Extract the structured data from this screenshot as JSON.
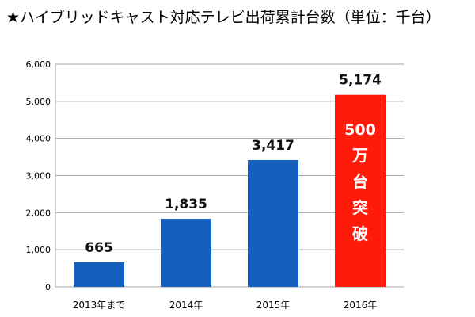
{
  "title": "★ハイブリッドキャスト対応テレビ出荷累計台数（単位：千台）",
  "chart_data": {
    "type": "bar",
    "title": "★ハイブリッドキャスト対応テレビ出荷累計台数（単位：千台）",
    "categories": [
      "2013年まで",
      "2014年",
      "2015年",
      "2016年"
    ],
    "values": [
      665,
      1835,
      3417,
      5174
    ],
    "value_labels": [
      "665",
      "1,835",
      "3,417",
      "5,174"
    ],
    "colors": [
      "#1560BD",
      "#1560BD",
      "#1560BD",
      "#FF1A0A"
    ],
    "ylim": [
      0,
      6000
    ],
    "yticks": [
      0,
      1000,
      2000,
      3000,
      4000,
      5000,
      6000
    ],
    "ytick_labels": [
      "0",
      "1,000",
      "2,000",
      "3,000",
      "4,000",
      "5,000",
      "6,000"
    ],
    "grid": true,
    "xlabel": "",
    "ylabel": "",
    "annotation": [
      "500",
      "万",
      "台",
      "突",
      "破"
    ]
  }
}
